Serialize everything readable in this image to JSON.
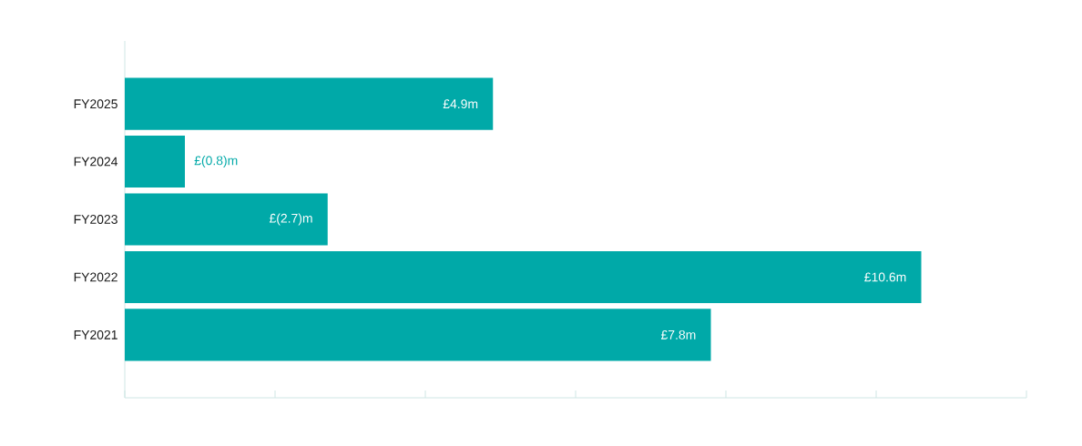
{
  "chart_data": {
    "type": "bar",
    "orientation": "horizontal",
    "categories": [
      "FY2025",
      "FY2024",
      "FY2023",
      "FY2022",
      "FY2021"
    ],
    "values": [
      4.9,
      0.8,
      2.7,
      10.6,
      7.8
    ],
    "value_labels": [
      "£4.9m",
      "£(0.8)m",
      "£(2.7)m",
      "£10.6m",
      "£7.8m"
    ],
    "color": "#00a9a8",
    "xlim": [
      0,
      12
    ],
    "xticks": [
      {
        "value": 0,
        "label": null
      },
      {
        "value": 2,
        "label": null
      },
      {
        "value": 4,
        "label": null
      },
      {
        "value": 6,
        "label": null
      },
      {
        "value": 8,
        "label": null
      },
      {
        "value": 10,
        "label": null
      },
      {
        "value": 12,
        "label": null
      }
    ],
    "tick_labels": "y"
  }
}
